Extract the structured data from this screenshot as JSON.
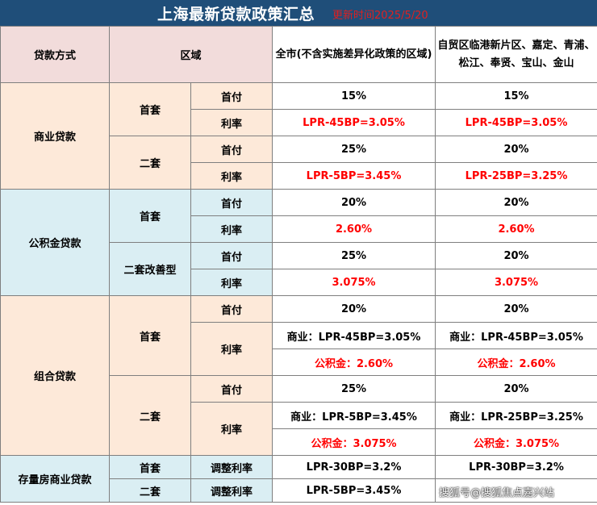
{
  "title": {
    "main": "上海最新贷款政策汇总",
    "update_date": "更新时间2025/5/20"
  },
  "header": {
    "loan_type": "贷款方式",
    "region": "区域",
    "city_wide": "全市(不含实施差异化政策的区域)",
    "special_zone": "自贸区临港新片区、嘉定、青浦、松江、奉贤、宝山、金山"
  },
  "labels": {
    "first_home": "首套",
    "second_home": "二套",
    "second_upgrade": "二套改善型",
    "down_payment": "首付",
    "rate": "利率",
    "adjusted_rate": "调整利率"
  },
  "commercial": {
    "label": "商业贷款",
    "first_dp": [
      "15%",
      "15%"
    ],
    "first_rate": [
      "LPR-45BP=3.05%",
      "LPR-45BP=3.05%"
    ],
    "second_dp": [
      "25%",
      "20%"
    ],
    "second_rate": [
      "LPR-5BP=3.45%",
      "LPR-25BP=3.25%"
    ]
  },
  "provident": {
    "label": "公积金贷款",
    "first_dp": [
      "20%",
      "20%"
    ],
    "first_rate": [
      "2.60%",
      "2.60%"
    ],
    "second_dp": [
      "25%",
      "20%"
    ],
    "second_rate": [
      "3.075%",
      "3.075%"
    ]
  },
  "combo": {
    "label": "组合贷款",
    "first_dp": [
      "20%",
      "20%"
    ],
    "first_rate_commercial": [
      "商业：LPR-45BP=3.05%",
      "商业：LPR-45BP=3.05%"
    ],
    "first_rate_provident": [
      "公积金：2.60%",
      "公积金：2.60%"
    ],
    "second_dp": [
      "25%",
      "20%"
    ],
    "second_rate_commercial": [
      "商业：LPR-5BP=3.45%",
      "商业：LPR-25BP=3.25%"
    ],
    "second_rate_provident": [
      "公积金：3.075%",
      "公积金：3.075%"
    ]
  },
  "existing": {
    "label": "存量房商业贷款",
    "first_rate": [
      "LPR-30BP=3.2%",
      "LPR-30BP=3.2%"
    ],
    "second_rate": [
      "LPR-5BP=3.45%"
    ]
  },
  "watermark": "搜狐号@搜狐焦点嘉兴站",
  "colors": {
    "title_bg": "#1f4e79",
    "header_bg": "#f2dcdb",
    "peach": "#fde9d9",
    "light_blue": "#daeef3",
    "red_text": "#ff0000"
  }
}
